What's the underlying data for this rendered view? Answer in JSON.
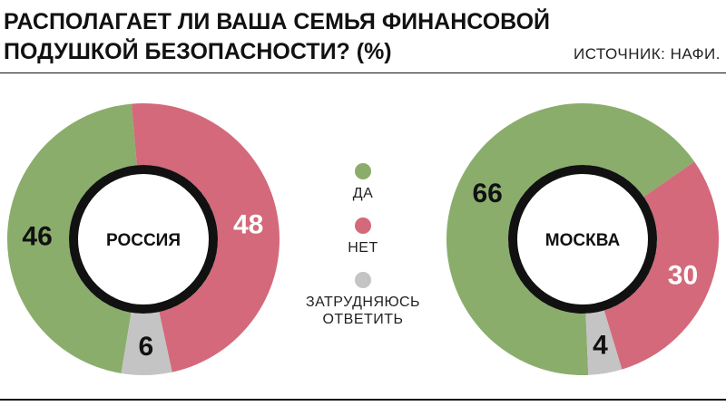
{
  "title": "РАСПОЛАГАЕТ ЛИ ВАША СЕМЬЯ ФИНАНСОВОЙ ПОДУШКОЙ БЕЗОПАСНОСТИ? (%)",
  "source": "ИСТОЧНИК: НАФИ.",
  "chart_data": [
    {
      "type": "pie",
      "center_label": "РОССИЯ",
      "categories": [
        "ДА",
        "НЕТ",
        "ЗАТРУДНЯЮСЬ ОТВЕТИТЬ"
      ],
      "values": [
        46,
        48,
        6
      ],
      "colors": [
        "#8aad6b",
        "#d3697a",
        "#c4c4c4"
      ]
    },
    {
      "type": "pie",
      "center_label": "МОСКВА",
      "categories": [
        "ДА",
        "НЕТ",
        "ЗАТРУДНЯЮСЬ ОТВЕТИТЬ"
      ],
      "values": [
        66,
        30,
        4
      ],
      "colors": [
        "#8aad6b",
        "#d3697a",
        "#c4c4c4"
      ]
    }
  ]
}
